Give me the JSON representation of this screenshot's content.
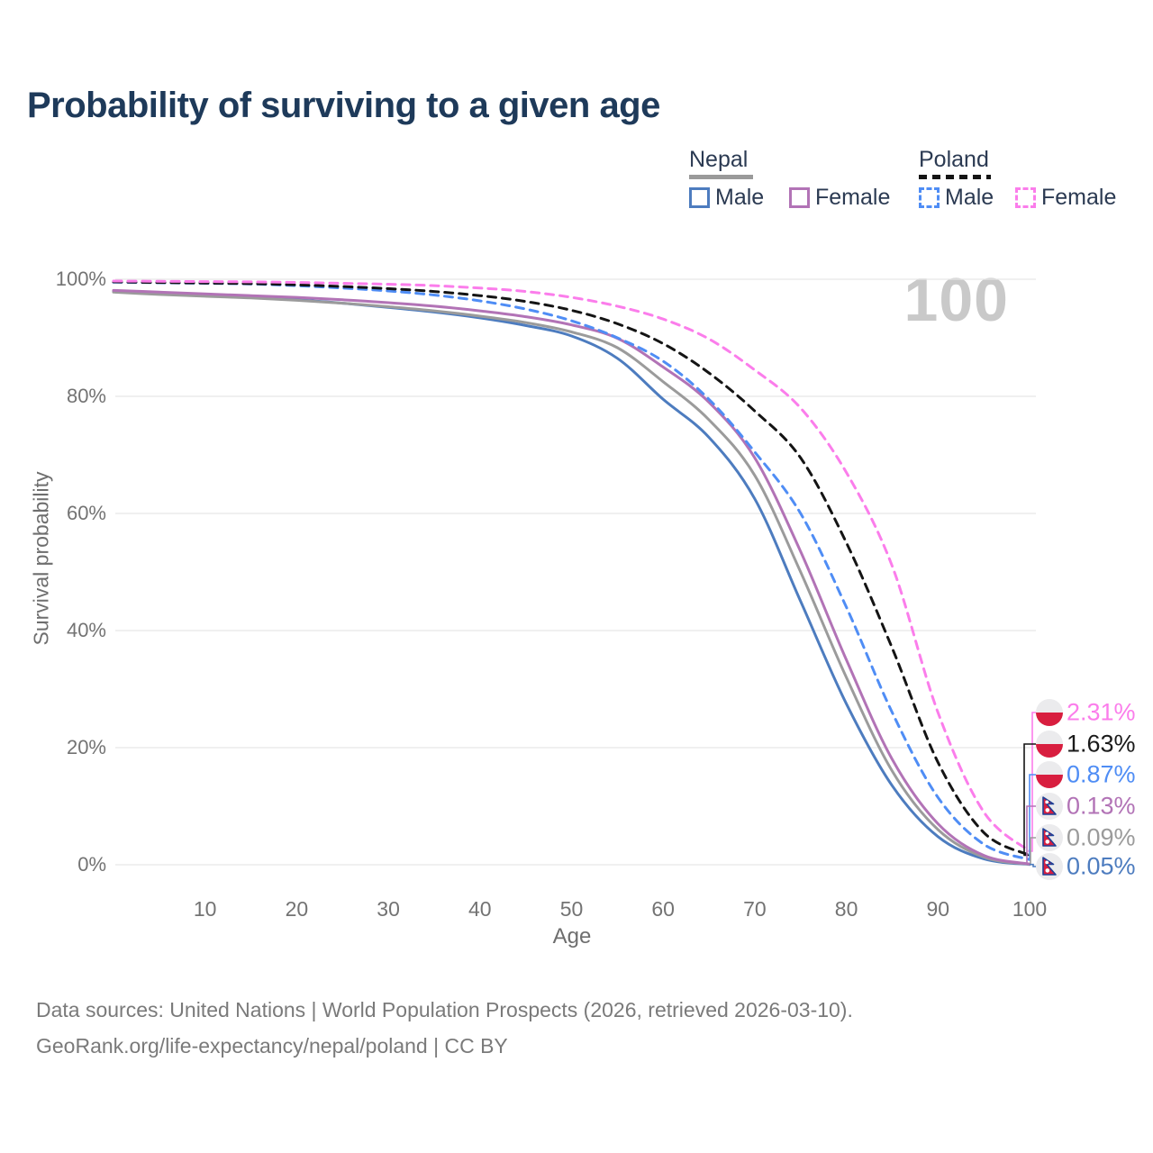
{
  "title": "Probability of surviving to a given age",
  "watermark_age": "100",
  "legend": {
    "groups": [
      {
        "name": "Nepal",
        "line_style": "solid",
        "underline_color": "#9a9a9a",
        "items": [
          {
            "label": "Male",
            "color": "#4d7cbf"
          },
          {
            "label": "Female",
            "color": "#b273b6"
          }
        ]
      },
      {
        "name": "Poland",
        "line_style": "dashed",
        "underline_color": "#141414",
        "items": [
          {
            "label": "Male",
            "color": "#4f8df5"
          },
          {
            "label": "Female",
            "color": "#fb7deb"
          }
        ]
      }
    ]
  },
  "chart_data": {
    "type": "line",
    "xlabel": "Age",
    "ylabel": "Survival probability",
    "xlim": [
      0,
      100
    ],
    "ylim": [
      0,
      100
    ],
    "grid": "horizontal",
    "x_ticks": [
      {
        "label": "10",
        "value": 10
      },
      {
        "label": "20",
        "value": 20
      },
      {
        "label": "30",
        "value": 30
      },
      {
        "label": "40",
        "value": 40
      },
      {
        "label": "50",
        "value": 50
      },
      {
        "label": "60",
        "value": 60
      },
      {
        "label": "70",
        "value": 70
      },
      {
        "label": "80",
        "value": 80
      },
      {
        "label": "90",
        "value": 90
      },
      {
        "label": "100",
        "value": 100
      }
    ],
    "y_ticks": [
      {
        "label": "0%",
        "value": 0
      },
      {
        "label": "20%",
        "value": 20
      },
      {
        "label": "40%",
        "value": 40
      },
      {
        "label": "60%",
        "value": 60
      },
      {
        "label": "80%",
        "value": 80
      },
      {
        "label": "100%",
        "value": 100
      }
    ],
    "ages": [
      0,
      5,
      10,
      15,
      20,
      25,
      30,
      35,
      40,
      45,
      50,
      55,
      60,
      65,
      70,
      75,
      80,
      85,
      90,
      95,
      100
    ],
    "series": [
      {
        "name": "Nepal Male",
        "country": "Nepal",
        "sex": "Male",
        "flag": "nepal",
        "color": "#4d7cbf",
        "dashed": false,
        "end_label": "0.05%",
        "values": [
          98.0,
          97.5,
          97.2,
          96.9,
          96.5,
          95.9,
          95.2,
          94.4,
          93.4,
          92.1,
          90.3,
          86.5,
          79.5,
          73.0,
          62.5,
          45.0,
          27.5,
          13.5,
          4.8,
          1.0,
          0.05
        ]
      },
      {
        "name": "Nepal Both sexes",
        "country": "Nepal",
        "sex": "Both",
        "flag": "nepal",
        "color": "#9b9b9b",
        "dashed": false,
        "end_label": "0.09%",
        "values": [
          97.8,
          97.4,
          97.1,
          96.8,
          96.4,
          95.9,
          95.3,
          94.6,
          93.7,
          92.6,
          91.0,
          88.3,
          82.5,
          76.0,
          66.5,
          50.0,
          32.0,
          16.0,
          6.0,
          1.3,
          0.09
        ]
      },
      {
        "name": "Nepal Female",
        "country": "Nepal",
        "sex": "Female",
        "flag": "nepal",
        "color": "#b273b6",
        "dashed": false,
        "end_label": "0.13%",
        "values": [
          98.1,
          97.8,
          97.5,
          97.2,
          96.9,
          96.5,
          96.0,
          95.4,
          94.6,
          93.6,
          92.2,
          89.9,
          85.0,
          79.0,
          69.5,
          53.5,
          35.0,
          18.0,
          7.0,
          1.6,
          0.13
        ]
      },
      {
        "name": "Poland Male",
        "country": "Poland",
        "sex": "Male",
        "flag": "poland",
        "color": "#4f8df5",
        "dashed": true,
        "end_label": "0.87%",
        "values": [
          99.5,
          99.4,
          99.3,
          99.2,
          98.9,
          98.5,
          98.0,
          97.3,
          96.3,
          94.9,
          92.9,
          90.0,
          86.0,
          79.5,
          70.5,
          60.0,
          44.0,
          26.0,
          11.5,
          3.5,
          0.87
        ]
      },
      {
        "name": "Poland Both sexes",
        "country": "Poland",
        "sex": "Both",
        "flag": "poland",
        "color": "#141414",
        "dashed": true,
        "end_label": "1.63%",
        "values": [
          99.55,
          99.45,
          99.35,
          99.25,
          99.05,
          98.75,
          98.4,
          97.9,
          97.2,
          96.2,
          94.7,
          92.4,
          89.0,
          84.0,
          77.5,
          69.5,
          55.0,
          37.0,
          17.5,
          5.5,
          1.63
        ]
      },
      {
        "name": "Poland Female",
        "country": "Poland",
        "sex": "Female",
        "flag": "poland",
        "color": "#fb7deb",
        "dashed": true,
        "end_label": "2.31%",
        "values": [
          99.7,
          99.65,
          99.6,
          99.55,
          99.45,
          99.3,
          99.15,
          98.9,
          98.5,
          97.9,
          96.9,
          95.4,
          93.2,
          89.8,
          84.5,
          78.0,
          67.0,
          51.0,
          26.0,
          9.0,
          2.31
        ]
      }
    ]
  },
  "footer": {
    "line1": "Data sources: United Nations | World Population Prospects (2026, retrieved 2026-03-10).",
    "line2": "GeoRank.org/life-expectancy/nepal/poland | CC BY"
  },
  "colors": {
    "title": "#1e3a5a",
    "grid": "#e6e6e6",
    "tick_text": "#737373",
    "watermark": "#c9c9c9",
    "nepal_blue_border": "#1f4096",
    "flag_red": "#d81e3f",
    "flag_light": "#ebebed"
  }
}
